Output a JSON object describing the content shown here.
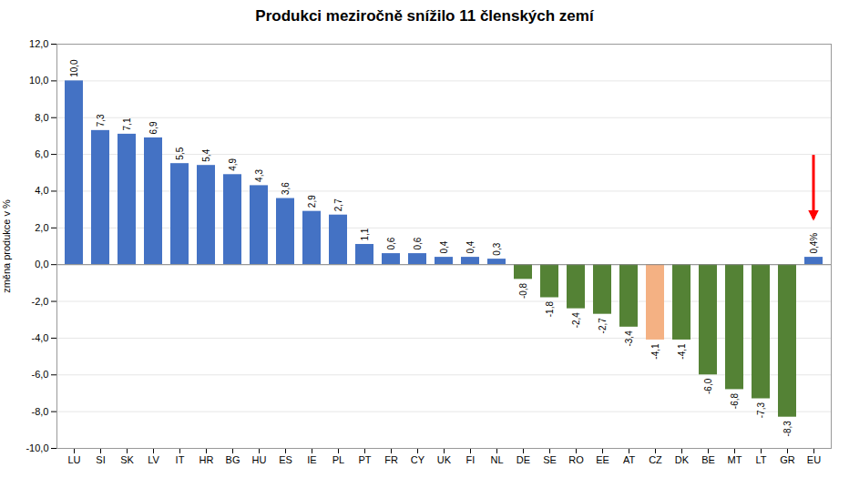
{
  "chart_data": {
    "type": "bar",
    "title": "Produkci meziročně snížilo 11 členských zemí",
    "y_label": "změna produkce v %",
    "categories": [
      "LU",
      "SI",
      "SK",
      "LV",
      "IT",
      "HR",
      "BG",
      "HU",
      "ES",
      "IE",
      "PL",
      "PT",
      "FR",
      "CY",
      "UK",
      "FI",
      "NL",
      "DE",
      "SE",
      "RO",
      "EE",
      "AT",
      "CZ",
      "DK",
      "BE",
      "MT",
      "LT",
      "GR",
      "EU"
    ],
    "values": [
      10.0,
      7.3,
      7.1,
      6.9,
      5.5,
      5.4,
      4.9,
      4.3,
      3.6,
      2.9,
      2.7,
      1.1,
      0.6,
      0.6,
      0.4,
      0.4,
      0.3,
      -0.8,
      -1.8,
      -2.4,
      -2.7,
      -3.4,
      -4.1,
      -4.1,
      -6.0,
      -6.8,
      -7.3,
      -8.3,
      0.4
    ],
    "value_labels": [
      "10,0",
      "7,3",
      "7,1",
      "6,9",
      "5,5",
      "5,4",
      "4,9",
      "4,3",
      "3,6",
      "2,9",
      "2,7",
      "1,1",
      "0,6",
      "0,6",
      "0,4",
      "0,4",
      "0,3",
      "-0,8",
      "-1,8",
      "-2,4",
      "-2,7",
      "-3,4",
      "-4,1",
      "-4,1",
      "-6,0",
      "-6,8",
      "-7,3",
      "-8,3",
      "0,4%"
    ],
    "colors": [
      "#4472C4",
      "#4472C4",
      "#4472C4",
      "#4472C4",
      "#4472C4",
      "#4472C4",
      "#4472C4",
      "#4472C4",
      "#4472C4",
      "#4472C4",
      "#4472C4",
      "#4472C4",
      "#4472C4",
      "#4472C4",
      "#4472C4",
      "#4472C4",
      "#4472C4",
      "#548235",
      "#548235",
      "#548235",
      "#548235",
      "#548235",
      "#F4B183",
      "#548235",
      "#548235",
      "#548235",
      "#548235",
      "#548235",
      "#4472C4"
    ],
    "data_labels": true,
    "ylim": [
      -10.0,
      12.0
    ],
    "yticks": [
      {
        "value": -10.0,
        "label": "-10,0"
      },
      {
        "value": -8.0,
        "label": "-8,0"
      },
      {
        "value": -6.0,
        "label": "-6,0"
      },
      {
        "value": -4.0,
        "label": "-4,0"
      },
      {
        "value": -2.0,
        "label": "-2,0"
      },
      {
        "value": 0.0,
        "label": "0,0"
      },
      {
        "value": 2.0,
        "label": "2,0"
      },
      {
        "value": 4.0,
        "label": "4,0"
      },
      {
        "value": 6.0,
        "label": "6,0"
      },
      {
        "value": 8.0,
        "label": "8,0"
      },
      {
        "value": 10.0,
        "label": "10,0"
      },
      {
        "value": 12.0,
        "label": "12,0"
      }
    ],
    "grid": true
  }
}
